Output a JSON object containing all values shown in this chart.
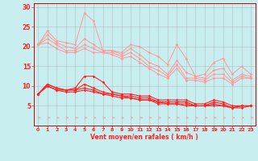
{
  "x": [
    0,
    1,
    2,
    3,
    4,
    5,
    6,
    7,
    8,
    9,
    10,
    11,
    12,
    13,
    14,
    15,
    16,
    17,
    18,
    19,
    20,
    21,
    22,
    23
  ],
  "pink_lines": [
    [
      20.5,
      24.0,
      21.5,
      21.0,
      20.5,
      28.5,
      26.5,
      19.0,
      19.0,
      18.5,
      20.5,
      20.0,
      18.5,
      17.5,
      15.5,
      20.5,
      17.0,
      12.5,
      13.0,
      16.0,
      17.0,
      13.0,
      15.0,
      13.0
    ],
    [
      20.5,
      23.0,
      21.0,
      20.0,
      19.5,
      22.0,
      20.5,
      19.0,
      19.0,
      18.0,
      19.5,
      18.0,
      16.0,
      15.0,
      13.0,
      16.5,
      13.5,
      12.5,
      12.0,
      14.0,
      14.5,
      11.5,
      13.0,
      12.5
    ],
    [
      20.5,
      22.0,
      20.5,
      19.0,
      19.0,
      20.5,
      19.5,
      18.5,
      18.5,
      17.5,
      18.5,
      17.0,
      15.0,
      14.0,
      12.5,
      15.5,
      12.0,
      12.0,
      11.5,
      13.0,
      13.0,
      11.0,
      12.5,
      12.0
    ],
    [
      20.5,
      21.0,
      19.5,
      18.5,
      18.5,
      19.5,
      18.5,
      18.5,
      18.0,
      17.0,
      17.5,
      16.0,
      14.5,
      13.0,
      12.0,
      14.5,
      11.5,
      11.5,
      11.0,
      12.0,
      12.0,
      10.5,
      12.0,
      12.0
    ]
  ],
  "red_lines": [
    [
      8.0,
      10.5,
      9.5,
      9.0,
      9.5,
      12.5,
      12.5,
      11.0,
      8.5,
      8.0,
      8.0,
      7.5,
      7.5,
      6.5,
      6.5,
      6.5,
      6.5,
      5.5,
      5.5,
      6.5,
      6.0,
      5.0,
      5.0,
      5.0
    ],
    [
      8.0,
      10.5,
      9.5,
      9.0,
      9.0,
      10.5,
      9.5,
      8.5,
      8.0,
      7.5,
      7.5,
      7.0,
      7.0,
      6.0,
      6.0,
      6.0,
      6.0,
      5.0,
      5.0,
      6.0,
      5.5,
      4.5,
      5.0,
      5.0
    ],
    [
      8.0,
      10.0,
      9.0,
      9.0,
      9.0,
      9.5,
      9.0,
      8.0,
      8.0,
      7.5,
      7.0,
      6.5,
      6.5,
      6.0,
      5.5,
      5.5,
      5.5,
      5.0,
      5.0,
      5.5,
      5.0,
      4.5,
      5.0,
      5.0
    ],
    [
      8.0,
      10.0,
      9.0,
      8.5,
      8.5,
      9.0,
      8.5,
      8.0,
      7.5,
      7.0,
      7.0,
      6.5,
      6.5,
      5.5,
      5.5,
      5.5,
      5.0,
      5.0,
      5.0,
      5.0,
      5.0,
      4.5,
      4.5,
      5.0
    ]
  ],
  "xlabel": "Vent moyen/en rafales ( km/h )",
  "ylim": [
    0,
    31
  ],
  "xlim": [
    -0.5,
    23.5
  ],
  "yticks": [
    5,
    10,
    15,
    20,
    25,
    30
  ],
  "xticks": [
    0,
    1,
    2,
    3,
    4,
    5,
    6,
    7,
    8,
    9,
    10,
    11,
    12,
    13,
    14,
    15,
    16,
    17,
    18,
    19,
    20,
    21,
    22,
    23
  ],
  "bg_color": "#c8eef0",
  "pink_color": "#ff9999",
  "red_color": "#ff2222",
  "grid_color": "#b0b0b0",
  "spine_color": "#cc0000"
}
